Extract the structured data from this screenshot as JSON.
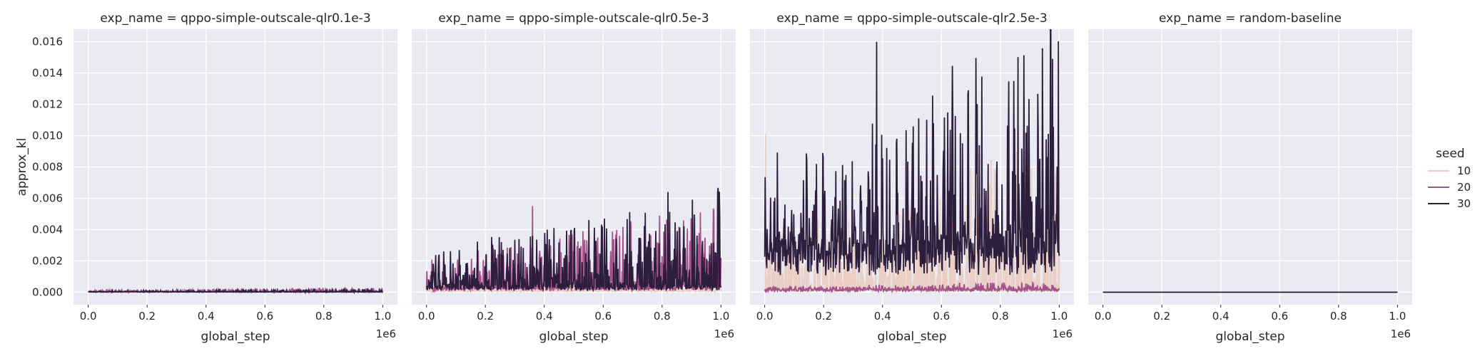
{
  "chart_data": {
    "type": "line",
    "ylabel": "approx_kl",
    "xlabel": "global_step",
    "x_offset_label": "1e6",
    "xlim": [
      -0.05,
      1.05
    ],
    "ylim": [
      -0.0008,
      0.0168
    ],
    "x_ticks": [
      0.0,
      0.2,
      0.4,
      0.6,
      0.8,
      1.0
    ],
    "x_tick_labels": [
      "0.0",
      "0.2",
      "0.4",
      "0.6",
      "0.8",
      "1.0"
    ],
    "y_ticks": [
      0.0,
      0.002,
      0.004,
      0.006,
      0.008,
      0.01,
      0.012,
      0.014,
      0.016
    ],
    "y_tick_labels": [
      "0.000",
      "0.002",
      "0.004",
      "0.006",
      "0.008",
      "0.010",
      "0.012",
      "0.014",
      "0.016"
    ],
    "grid": true,
    "legend": {
      "title": "seed",
      "placement": "right",
      "entries": [
        {
          "label": "10",
          "color": "#ebcfc5"
        },
        {
          "label": "20",
          "color": "#a4538a"
        },
        {
          "label": "30",
          "color": "#2d1e3e"
        }
      ]
    },
    "panels": [
      {
        "title": "exp_name = qppo-simple-outscale-qlr0.1e-3",
        "series": [
          {
            "name": "10",
            "color": "#ebcfc5",
            "approx_baseline": 2e-05,
            "approx_peak": 0.0001,
            "x_range": [
              0.0,
              1.0
            ]
          },
          {
            "name": "20",
            "color": "#a4538a",
            "approx_baseline": 4e-05,
            "approx_peak": 0.0003,
            "x_range": [
              0.0,
              1.0
            ]
          },
          {
            "name": "30",
            "color": "#2d1e3e",
            "approx_baseline": 3e-05,
            "approx_peak": 0.0002,
            "x_range": [
              0.0,
              1.0
            ]
          }
        ]
      },
      {
        "title": "exp_name = qppo-simple-outscale-qlr0.5e-3",
        "series": [
          {
            "name": "10",
            "color": "#ebcfc5",
            "approx_baseline": 0.0001,
            "approx_peak": 0.0012,
            "x_range": [
              0.0,
              1.0
            ]
          },
          {
            "name": "20",
            "color": "#a4538a",
            "approx_baseline": 0.0003,
            "approx_peak": 0.0055,
            "x_range": [
              0.0,
              1.0
            ]
          },
          {
            "name": "30",
            "color": "#2d1e3e",
            "approx_baseline": 0.0004,
            "approx_peak": 0.0064,
            "x_range": [
              0.0,
              1.0
            ]
          }
        ]
      },
      {
        "title": "exp_name = qppo-simple-outscale-qlr2.5e-3",
        "series": [
          {
            "name": "10",
            "color": "#ebcfc5",
            "approx_baseline": 0.0001,
            "approx_peak": 0.0101,
            "x_range": [
              0.0,
              1.0
            ]
          },
          {
            "name": "20",
            "color": "#a4538a",
            "approx_baseline": 0.0002,
            "approx_peak": 0.0006,
            "x_range": [
              0.0,
              1.0
            ]
          },
          {
            "name": "30",
            "color": "#2d1e3e",
            "approx_baseline": 0.0035,
            "approx_peak": 0.016,
            "x_range": [
              0.0,
              1.0
            ]
          }
        ]
      },
      {
        "title": "exp_name = random-baseline",
        "series": [
          {
            "name": "10",
            "color": "#ebcfc5",
            "approx_baseline": 0.0,
            "approx_peak": 0.0,
            "x_range": [
              0.0,
              1.0
            ]
          },
          {
            "name": "20",
            "color": "#a4538a",
            "approx_baseline": 0.0,
            "approx_peak": 0.0,
            "x_range": [
              0.0,
              1.0
            ]
          },
          {
            "name": "30",
            "color": "#2d1e3e",
            "approx_baseline": 0.0,
            "approx_peak": 0.0,
            "x_range": [
              0.0,
              1.0
            ]
          }
        ]
      }
    ]
  }
}
